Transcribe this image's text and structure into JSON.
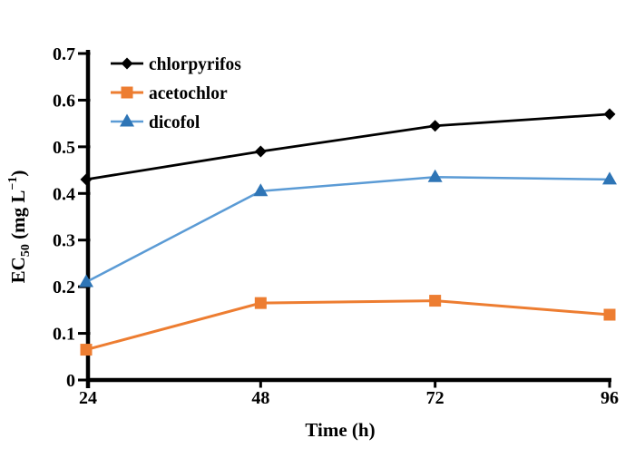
{
  "figure": {
    "background": "#ffffff"
  },
  "chart_data": {
    "type": "line",
    "title": "",
    "xlabel": "Time (h)",
    "ylabel": "EC50 (mg L-1)",
    "ylabel_parts": {
      "prefix": "EC",
      "sub": "50",
      "mid": " (mg L",
      "sup": "−1",
      "suffix": ")"
    },
    "x": [
      24,
      48,
      72,
      96
    ],
    "xtick_labels": [
      "24",
      "48",
      "72",
      "96"
    ],
    "ylim": [
      0,
      0.7
    ],
    "yticks": [
      0,
      0.1,
      0.2,
      0.3,
      0.4,
      0.5,
      0.6,
      0.7
    ],
    "ytick_labels": [
      "0",
      "0.1",
      "0.2",
      "0.3",
      "0.4",
      "0.5",
      "0.6",
      "0.7"
    ],
    "grid": false,
    "legend_position": "top-left-inside",
    "axis_color": "#000000",
    "series": [
      {
        "name": "chlorpyrifos",
        "marker": "diamond",
        "line_color": "#000000",
        "marker_color": "#000000",
        "line_width": 2.75,
        "values": [
          0.43,
          0.49,
          0.545,
          0.57
        ]
      },
      {
        "name": "acetochlor",
        "marker": "square",
        "line_color": "#ED7D31",
        "marker_color": "#ED7D31",
        "line_width": 3,
        "values": [
          0.065,
          0.165,
          0.17,
          0.14
        ]
      },
      {
        "name": "dicofol",
        "marker": "triangle",
        "line_color": "#5B9BD5",
        "marker_color": "#2E75B6",
        "line_width": 2.5,
        "values": [
          0.21,
          0.405,
          0.435,
          0.43
        ]
      }
    ]
  }
}
